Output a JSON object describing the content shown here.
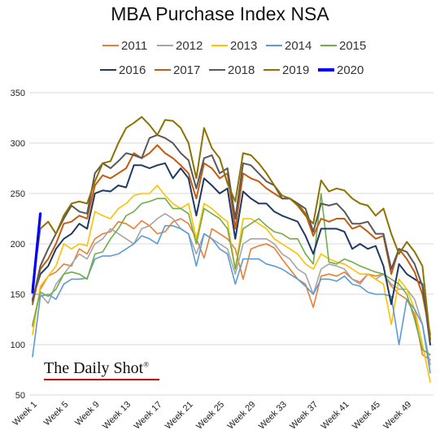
{
  "chart_data": {
    "type": "line",
    "title": "MBA Purchase Index NSA",
    "xlabel": "",
    "ylabel": "",
    "ylim": [
      50,
      350
    ],
    "yticks": [
      50,
      100,
      150,
      200,
      250,
      300,
      350
    ],
    "xticks": [
      "Week 1",
      "Week 5",
      "Week 9",
      "Week 13",
      "Week 17",
      "Week 21",
      "Week 25",
      "Week 29",
      "Week 33",
      "Week 37",
      "Week 41",
      "Week 45",
      "Week 49"
    ],
    "x_range": [
      1,
      52
    ],
    "grid": true,
    "legend_position": "top",
    "series": [
      {
        "name": "2011",
        "color": "#ED7D31",
        "width": 1.6,
        "values": [
          118,
          155,
          168,
          172,
          180,
          178,
          195,
          190,
          205,
          210,
          212,
          222,
          220,
          215,
          223,
          218,
          210,
          212,
          222,
          225,
          220,
          205,
          186,
          215,
          210,
          205,
          195,
          165,
          195,
          198,
          200,
          196,
          185,
          175,
          165,
          160,
          137,
          168,
          170,
          168,
          172,
          165,
          162,
          170,
          168,
          170,
          158,
          150,
          145,
          130,
          90,
          85
        ]
      },
      {
        "name": "2012",
        "color": "#A5A5A5",
        "width": 1.6,
        "values": [
          150,
          150,
          141,
          160,
          170,
          180,
          190,
          185,
          200,
          205,
          215,
          210,
          205,
          200,
          215,
          218,
          225,
          230,
          225,
          215,
          210,
          190,
          210,
          205,
          200,
          195,
          170,
          200,
          205,
          205,
          205,
          200,
          190,
          185,
          175,
          170,
          150,
          175,
          180,
          178,
          175,
          165,
          160,
          170,
          165,
          170,
          160,
          155,
          155,
          145,
          120,
          80
        ]
      },
      {
        "name": "2013",
        "color": "#FFC000",
        "width": 1.6,
        "values": [
          110,
          158,
          168,
          178,
          200,
          195,
          200,
          198,
          232,
          228,
          225,
          235,
          240,
          248,
          250,
          250,
          258,
          248,
          240,
          235,
          240,
          205,
          240,
          235,
          228,
          222,
          175,
          225,
          225,
          220,
          215,
          205,
          200,
          195,
          190,
          180,
          175,
          190,
          185,
          182,
          180,
          175,
          170,
          170,
          165,
          160,
          120,
          165,
          155,
          135,
          100,
          63
        ]
      },
      {
        "name": "2014",
        "color": "#5B9BD5",
        "width": 1.6,
        "values": [
          88,
          148,
          150,
          145,
          160,
          165,
          165,
          166,
          185,
          188,
          188,
          190,
          195,
          200,
          208,
          205,
          200,
          218,
          218,
          215,
          210,
          178,
          210,
          205,
          195,
          190,
          160,
          185,
          185,
          185,
          180,
          178,
          175,
          170,
          165,
          158,
          150,
          165,
          165,
          163,
          168,
          160,
          158,
          152,
          150,
          150,
          148,
          100,
          145,
          135,
          120,
          72
        ]
      },
      {
        "name": "2015",
        "color": "#70AD47",
        "width": 1.6,
        "values": [
          120,
          152,
          148,
          155,
          170,
          172,
          170,
          165,
          190,
          192,
          205,
          215,
          228,
          232,
          240,
          242,
          245,
          245,
          235,
          235,
          230,
          200,
          235,
          230,
          225,
          215,
          175,
          215,
          220,
          225,
          218,
          212,
          210,
          205,
          205,
          190,
          180,
          250,
          182,
          180,
          185,
          182,
          178,
          175,
          172,
          170,
          165,
          160,
          150,
          125,
          95,
          90
        ]
      },
      {
        "name": "2016",
        "color": "#1F3864",
        "width": 2,
        "values": [
          145,
          170,
          178,
          195,
          205,
          210,
          220,
          215,
          250,
          253,
          252,
          258,
          256,
          278,
          278,
          275,
          278,
          280,
          265,
          275,
          265,
          228,
          265,
          258,
          250,
          255,
          205,
          252,
          245,
          240,
          240,
          232,
          228,
          225,
          222,
          208,
          190,
          215,
          215,
          215,
          212,
          195,
          200,
          195,
          198,
          178,
          140,
          180,
          170,
          165,
          160,
          100
        ]
      },
      {
        "name": "2017",
        "color": "#C55A11",
        "width": 2,
        "values": [
          140,
          175,
          185,
          200,
          220,
          222,
          228,
          225,
          258,
          268,
          265,
          270,
          275,
          290,
          285,
          290,
          298,
          290,
          285,
          278,
          270,
          245,
          280,
          275,
          265,
          270,
          215,
          270,
          265,
          262,
          255,
          250,
          245,
          245,
          240,
          230,
          208,
          225,
          222,
          225,
          225,
          215,
          218,
          212,
          205,
          208,
          170,
          195,
          185,
          172,
          150,
          110
        ]
      },
      {
        "name": "2018",
        "color": "#595959",
        "width": 2,
        "values": [
          143,
          178,
          195,
          210,
          225,
          238,
          232,
          230,
          270,
          280,
          275,
          282,
          290,
          288,
          285,
          305,
          308,
          305,
          300,
          290,
          283,
          255,
          285,
          288,
          270,
          275,
          225,
          280,
          278,
          270,
          262,
          258,
          245,
          245,
          240,
          235,
          212,
          240,
          238,
          240,
          232,
          220,
          220,
          222,
          210,
          210,
          175,
          195,
          192,
          180,
          158,
          105
        ]
      },
      {
        "name": "2019",
        "color": "#8F7100",
        "width": 2,
        "values": [
          158,
          215,
          222,
          210,
          228,
          240,
          242,
          240,
          262,
          280,
          282,
          300,
          315,
          320,
          326,
          318,
          308,
          323,
          322,
          315,
          300,
          265,
          315,
          295,
          285,
          260,
          242,
          290,
          288,
          280,
          270,
          258,
          248,
          245,
          238,
          228,
          220,
          263,
          252,
          255,
          253,
          245,
          240,
          238,
          228,
          235,
          210,
          190,
          202,
          192,
          178,
          105
        ]
      },
      {
        "name": "2020",
        "color": "#0000FF",
        "width": 3.2,
        "values": [
          152,
          230
        ]
      }
    ]
  },
  "legend": {
    "row1": [
      "2011",
      "2012",
      "2013",
      "2014",
      "2015"
    ],
    "row2": [
      "2016",
      "2017",
      "2018",
      "2019",
      "2020"
    ]
  },
  "watermark": "The Daily Shot",
  "watermark_mark": "®"
}
